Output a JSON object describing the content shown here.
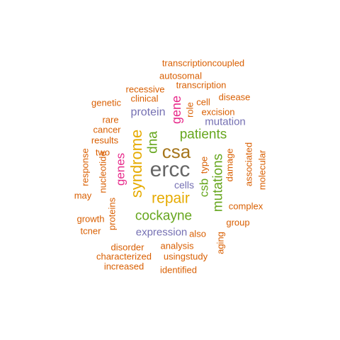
{
  "colors": {
    "orange": "#d95f02",
    "purple": "#7570b3",
    "magenta": "#e7298a",
    "green": "#66a61e",
    "gold": "#e6ab02",
    "brown": "#a6761d",
    "gray": "#666666"
  },
  "words": [
    {
      "text": "ercc",
      "color": "gray"
    },
    {
      "text": "csa",
      "color": "brown"
    },
    {
      "text": "syndrome",
      "color": "gold"
    },
    {
      "text": "repair",
      "color": "gold"
    },
    {
      "text": "dna",
      "color": "green"
    },
    {
      "text": "patients",
      "color": "green"
    },
    {
      "text": "cockayne",
      "color": "green"
    },
    {
      "text": "mutations",
      "color": "green"
    },
    {
      "text": "gene",
      "color": "magenta"
    },
    {
      "text": "genes",
      "color": "magenta"
    },
    {
      "text": "csb",
      "color": "green"
    },
    {
      "text": "protein",
      "color": "purple"
    },
    {
      "text": "expression",
      "color": "purple"
    },
    {
      "text": "mutation",
      "color": "purple"
    },
    {
      "text": "cells",
      "color": "purple"
    },
    {
      "text": "transcriptioncoupled",
      "color": "orange"
    },
    {
      "text": "autosomal",
      "color": "orange"
    },
    {
      "text": "recessive",
      "color": "orange"
    },
    {
      "text": "transcription",
      "color": "orange"
    },
    {
      "text": "clinical",
      "color": "orange"
    },
    {
      "text": "disease",
      "color": "orange"
    },
    {
      "text": "genetic",
      "color": "orange"
    },
    {
      "text": "cell",
      "color": "orange"
    },
    {
      "text": "role",
      "color": "orange"
    },
    {
      "text": "excision",
      "color": "orange"
    },
    {
      "text": "rare",
      "color": "orange"
    },
    {
      "text": "cancer",
      "color": "orange"
    },
    {
      "text": "results",
      "color": "orange"
    },
    {
      "text": "two",
      "color": "orange"
    },
    {
      "text": "response",
      "color": "orange"
    },
    {
      "text": "nucleotide",
      "color": "orange"
    },
    {
      "text": "type",
      "color": "orange"
    },
    {
      "text": "damage",
      "color": "orange"
    },
    {
      "text": "associated",
      "color": "orange"
    },
    {
      "text": "molecular",
      "color": "orange"
    },
    {
      "text": "may",
      "color": "orange"
    },
    {
      "text": "complex",
      "color": "orange"
    },
    {
      "text": "proteins",
      "color": "orange"
    },
    {
      "text": "growth",
      "color": "orange"
    },
    {
      "text": "group",
      "color": "orange"
    },
    {
      "text": "tcner",
      "color": "orange"
    },
    {
      "text": "also",
      "color": "orange"
    },
    {
      "text": "aging",
      "color": "orange"
    },
    {
      "text": "analysis",
      "color": "orange"
    },
    {
      "text": "disorder",
      "color": "orange"
    },
    {
      "text": "characterized",
      "color": "orange"
    },
    {
      "text": "usingstudy",
      "color": "orange"
    },
    {
      "text": "increased",
      "color": "orange"
    },
    {
      "text": "identified",
      "color": "orange"
    }
  ]
}
